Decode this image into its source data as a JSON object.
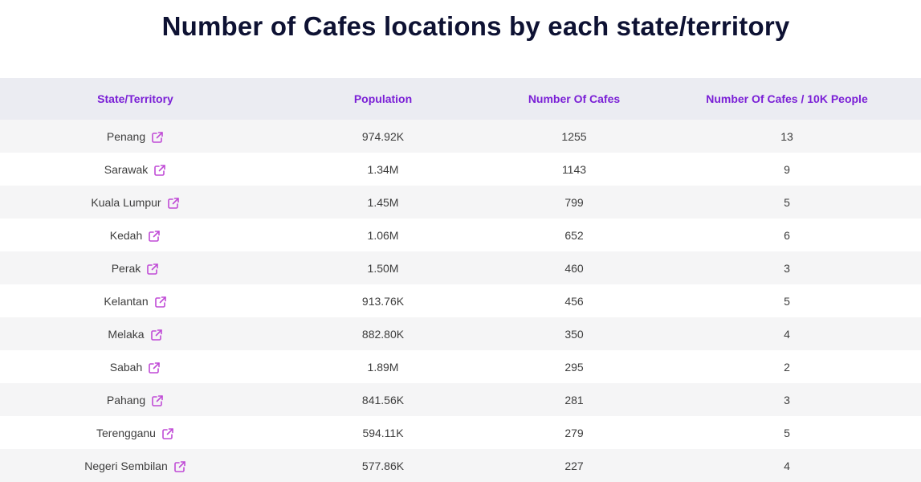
{
  "title": "Number of Cafes locations by each state/territory",
  "colors": {
    "title": "#0e1233",
    "header_text": "#7a1fd6",
    "header_bg": "#ebecf2",
    "icon": "#c04bd6",
    "row_alt_bg": "#f5f5f6"
  },
  "table": {
    "headers": [
      "State/Territory",
      "Population",
      "Number Of Cafes",
      "Number Of Cafes / 10K People"
    ],
    "link_icon": "external-link-icon",
    "rows": [
      {
        "state": "Penang",
        "population": "974.92K",
        "cafes": "1255",
        "per10k": "13"
      },
      {
        "state": "Sarawak",
        "population": "1.34M",
        "cafes": "1143",
        "per10k": "9"
      },
      {
        "state": "Kuala Lumpur",
        "population": "1.45M",
        "cafes": "799",
        "per10k": "5"
      },
      {
        "state": "Kedah",
        "population": "1.06M",
        "cafes": "652",
        "per10k": "6"
      },
      {
        "state": "Perak",
        "population": "1.50M",
        "cafes": "460",
        "per10k": "3"
      },
      {
        "state": "Kelantan",
        "population": "913.76K",
        "cafes": "456",
        "per10k": "5"
      },
      {
        "state": "Melaka",
        "population": "882.80K",
        "cafes": "350",
        "per10k": "4"
      },
      {
        "state": "Sabah",
        "population": "1.89M",
        "cafes": "295",
        "per10k": "2"
      },
      {
        "state": "Pahang",
        "population": "841.56K",
        "cafes": "281",
        "per10k": "3"
      },
      {
        "state": "Terengganu",
        "population": "594.11K",
        "cafes": "279",
        "per10k": "5"
      },
      {
        "state": "Negeri Sembilan",
        "population": "577.86K",
        "cafes": "227",
        "per10k": "4"
      }
    ]
  }
}
